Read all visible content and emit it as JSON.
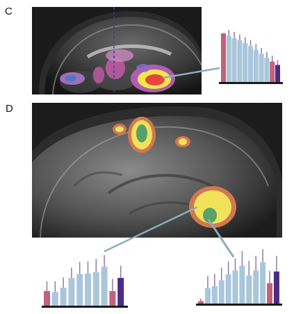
{
  "panels": {
    "c": {
      "label": "C"
    },
    "d": {
      "label": "D"
    }
  },
  "colors": {
    "bar_pink": "#c4607a",
    "bar_blue": "#a9c6da",
    "bar_purple": "#4a2c86",
    "error_bar": "#8a7ca8",
    "connector": "#8aaebc",
    "baseline": "#1a1a1a"
  },
  "chart_data": [
    {
      "type": "bar",
      "panel": "C",
      "values": [
        1.0,
        0.95,
        0.9,
        0.86,
        0.8,
        0.74,
        0.66,
        0.58,
        0.5,
        0.42,
        0.35
      ],
      "errors": [
        0.0,
        0.12,
        0.13,
        0.12,
        0.12,
        0.12,
        0.12,
        0.12,
        0.12,
        0.12,
        0.1
      ],
      "colors": [
        "pink",
        "blue",
        "blue",
        "blue",
        "blue",
        "blue",
        "blue",
        "blue",
        "blue",
        "pink",
        "purple"
      ]
    },
    {
      "type": "bar",
      "panel": "D-left",
      "values": [
        0.3,
        0.28,
        0.37,
        0.57,
        0.65,
        0.66,
        0.69,
        0.8,
        0.3,
        0.57
      ],
      "errors": [
        0.2,
        0.22,
        0.21,
        0.21,
        0.25,
        0.25,
        0.27,
        0.24,
        0.25,
        0.25
      ],
      "colors": [
        "pink",
        "blue",
        "blue",
        "blue",
        "blue",
        "blue",
        "blue",
        "blue",
        "pink",
        "purple"
      ]
    },
    {
      "type": "bar",
      "panel": "D-right",
      "values": [
        0.05,
        0.32,
        0.36,
        0.48,
        0.6,
        0.68,
        0.78,
        0.58,
        0.68,
        0.85,
        0.42,
        0.66
      ],
      "errors": [
        0.05,
        0.25,
        0.25,
        0.26,
        0.27,
        0.25,
        0.3,
        0.3,
        0.3,
        0.27,
        0.25,
        0.32
      ],
      "colors": [
        "pink",
        "blue",
        "blue",
        "blue",
        "blue",
        "blue",
        "blue",
        "blue",
        "blue",
        "blue",
        "pink",
        "purple"
      ]
    }
  ]
}
